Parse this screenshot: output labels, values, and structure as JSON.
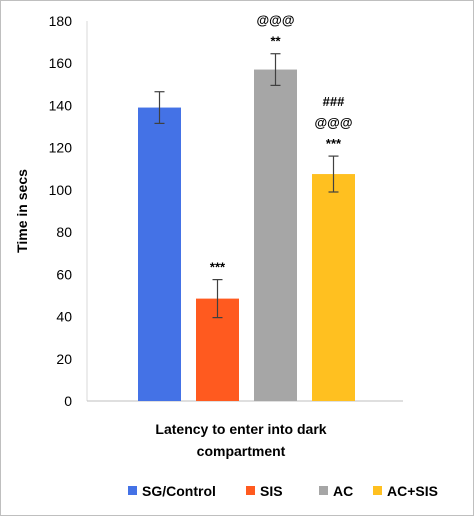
{
  "chart_data": {
    "type": "bar",
    "title": "",
    "xlabel": "Latency to enter into dark compartment",
    "xlabel_lines": [
      "Latency to enter into dark",
      "compartment"
    ],
    "ylabel": "Time in secs",
    "ylim": [
      0,
      180
    ],
    "yticks": [
      0,
      20,
      40,
      60,
      80,
      100,
      120,
      140,
      160,
      180
    ],
    "grid": false,
    "legend_position": "bottom",
    "categories": [
      "Latency to enter into dark compartment"
    ],
    "series": [
      {
        "name": "SG/Control",
        "values": [
          139
        ],
        "error": [
          7.5
        ],
        "color": "#4472e6",
        "annotations": []
      },
      {
        "name": "SIS",
        "values": [
          48.5
        ],
        "error": [
          9
        ],
        "color": "#ff5a1f",
        "annotations": [
          "***"
        ]
      },
      {
        "name": "AC",
        "values": [
          157
        ],
        "error": [
          7.5
        ],
        "color": "#a6a6a6",
        "annotations": [
          "**",
          "@@@"
        ]
      },
      {
        "name": "AC+SIS",
        "values": [
          107.5
        ],
        "error": [
          8.5
        ],
        "color": "#ffc020",
        "annotations": [
          "***",
          "@@@",
          "###"
        ]
      }
    ]
  }
}
